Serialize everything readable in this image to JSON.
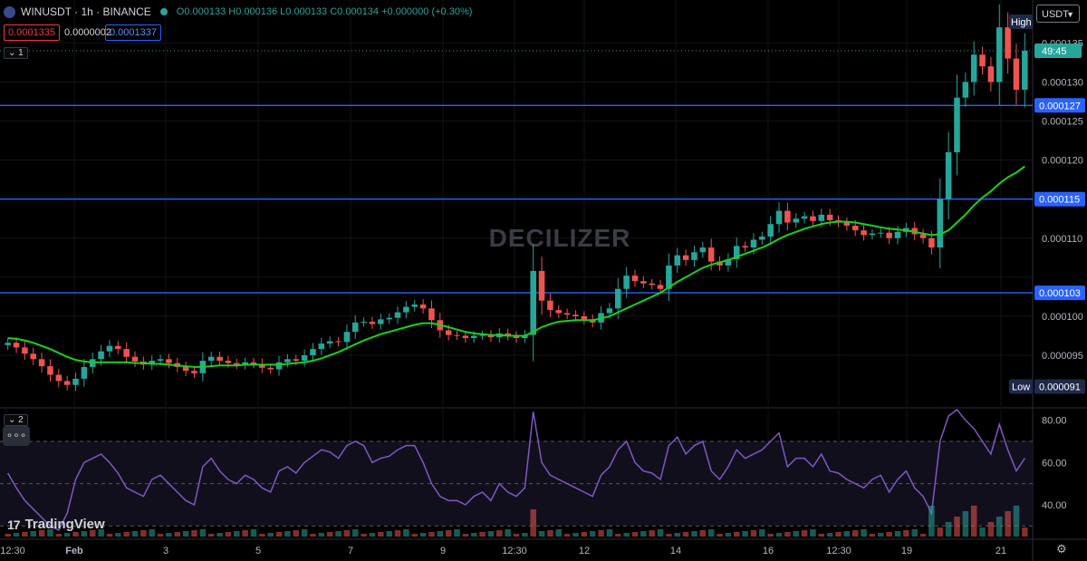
{
  "header": {
    "symbol": "WINUSDT · 1h · BINANCE",
    "ohlc": "O0.000133 H0.000136 L0.000133 C0.000134 +0.000000 (+0.30%)",
    "bid": "0.0001335",
    "spread": "0.0000002",
    "ask": "0.0001337",
    "main_pane": "1",
    "rsi_pane": "2"
  },
  "currency": "USDT",
  "watermark": "DECILIZER",
  "brand": "TradingView",
  "price_axis": {
    "ticks": [
      "0.000135",
      "0.000130",
      "0.000125",
      "0.000120",
      "0.000110",
      "0.000100",
      "0.000095"
    ],
    "high_tag": "High",
    "low_tag": "Low",
    "low_value": "0.000091",
    "countdown": "49:45"
  },
  "rsi_axis": {
    "ticks": [
      "80.00",
      "60.00",
      "40.00"
    ]
  },
  "time_axis": [
    "12:30",
    "Feb",
    "3",
    "5",
    "7",
    "9",
    "12:30",
    "12",
    "14",
    "16",
    "12:30",
    "19",
    "21"
  ],
  "colors": {
    "up": "#26a69a",
    "down": "#ef5350",
    "ma": "#19d11e",
    "level": "#2962ff",
    "rsi": "#7e57c2"
  },
  "chart_data": {
    "type": "candlestick",
    "title": "WINUSDT · 1h · BINANCE",
    "ylim": [
      8.85e-05,
      0.0001405
    ],
    "levels": [
      "0.000127",
      "0.000115",
      "0.000103"
    ],
    "close": [
      9.66e-05,
      9.6e-05,
      9.52e-05,
      9.45e-05,
      9.36e-05,
      9.25e-05,
      9.17e-05,
      9.12e-05,
      9.2e-05,
      9.35e-05,
      9.45e-05,
      9.55e-05,
      9.62e-05,
      9.58e-05,
      9.48e-05,
      9.42e-05,
      9.38e-05,
      9.43e-05,
      9.45e-05,
      9.4e-05,
      9.35e-05,
      9.3e-05,
      9.27e-05,
      9.43e-05,
      9.48e-05,
      9.43e-05,
      9.4e-05,
      9.38e-05,
      9.41e-05,
      9.39e-05,
      9.34e-05,
      9.32e-05,
      9.41e-05,
      9.45e-05,
      9.43e-05,
      9.5e-05,
      9.58e-05,
      9.65e-05,
      9.68e-05,
      9.67e-05,
      9.8e-05,
      9.92e-05,
      9.93e-05,
      9.9e-05,
      9.96e-05,
      9.98e-05,
      0.0001005,
      0.0001012,
      0.0001015,
      0.000101,
      9.95e-05,
      9.82e-05,
      9.76e-05,
      9.75e-05,
      9.72e-05,
      9.75e-05,
      9.76e-05,
      9.73e-05,
      9.78e-05,
      9.75e-05,
      9.72e-05,
      9.76e-05,
      0.0001058,
      0.000102,
      0.0001008,
      0.0001004,
      0.0001002,
      0.0001,
      9.96e-05,
      9.92e-05,
      0.0001004,
      0.000101,
      0.0001035,
      0.0001052,
      0.0001045,
      0.0001042,
      0.000104,
      0.0001035,
      0.0001065,
      0.0001078,
      0.0001072,
      0.0001082,
      0.0001088,
      0.000107,
      0.0001065,
      0.0001073,
      0.000109,
      0.0001088,
      0.0001098,
      0.0001102,
      0.0001118,
      0.0001135,
      0.000112,
      0.0001125,
      0.0001128,
      0.0001122,
      0.000113,
      0.0001123,
      0.000112,
      0.0001116,
      0.000111,
      0.0001104,
      0.0001106,
      0.0001107,
      0.00011,
      0.0001108,
      0.0001113,
      0.0001105,
      0.00011,
      0.0001088,
      0.000115,
      0.000121,
      0.000128,
      0.00013,
      0.0001335,
      0.000132,
      0.00013,
      0.000137,
      0.000133,
      0.000129,
      0.000134
    ],
    "ma": [
      9.72e-05,
      9.71e-05,
      9.69e-05,
      9.66e-05,
      9.62e-05,
      9.58e-05,
      9.53e-05,
      9.48e-05,
      9.44e-05,
      9.42e-05,
      9.41e-05,
      9.41e-05,
      9.41e-05,
      9.41e-05,
      9.41e-05,
      9.4e-05,
      9.4e-05,
      9.39e-05,
      9.39e-05,
      9.38e-05,
      9.37e-05,
      9.36e-05,
      9.35e-05,
      9.35e-05,
      9.36e-05,
      9.37e-05,
      9.37e-05,
      9.37e-05,
      9.38e-05,
      9.38e-05,
      9.38e-05,
      9.38e-05,
      9.38e-05,
      9.39e-05,
      9.4e-05,
      9.41e-05,
      9.43e-05,
      9.46e-05,
      9.5e-05,
      9.54e-05,
      9.59e-05,
      9.64e-05,
      9.69e-05,
      9.73e-05,
      9.77e-05,
      9.8e-05,
      9.83e-05,
      9.86e-05,
      9.89e-05,
      9.91e-05,
      9.91e-05,
      9.89e-05,
      9.86e-05,
      9.83e-05,
      9.8e-05,
      9.78e-05,
      9.77e-05,
      9.76e-05,
      9.76e-05,
      9.75e-05,
      9.75e-05,
      9.75e-05,
      9.8e-05,
      9.86e-05,
      9.9e-05,
      9.93e-05,
      9.94e-05,
      9.95e-05,
      9.95e-05,
      9.95e-05,
      9.97e-05,
      0.0001,
      0.0001005,
      0.000101,
      0.0001015,
      0.000102,
      0.0001025,
      0.000103,
      0.0001037,
      0.0001044,
      0.000105,
      0.0001056,
      0.0001062,
      0.0001066,
      0.0001069,
      0.0001072,
      0.0001076,
      0.000108,
      0.0001084,
      0.0001088,
      0.0001093,
      0.0001099,
      0.0001104,
      0.0001108,
      0.0001112,
      0.0001115,
      0.0001118,
      0.000112,
      0.0001121,
      0.0001121,
      0.000112,
      0.0001118,
      0.0001116,
      0.0001114,
      0.0001112,
      0.0001111,
      0.000111,
      0.0001108,
      0.0001106,
      0.0001104,
      0.0001105,
      0.000111,
      0.000112,
      0.000113,
      0.0001142,
      0.0001152,
      0.000116,
      0.000117,
      0.0001178,
      0.0001184,
      0.0001192
    ],
    "rsi": [
      55,
      48,
      42,
      38,
      34,
      30,
      28,
      36,
      52,
      60,
      62,
      64,
      60,
      55,
      48,
      46,
      44,
      52,
      54,
      50,
      46,
      42,
      40,
      58,
      62,
      56,
      52,
      50,
      54,
      52,
      48,
      46,
      56,
      58,
      55,
      60,
      63,
      66,
      65,
      62,
      68,
      70,
      68,
      60,
      62,
      63,
      66,
      68,
      68,
      60,
      50,
      44,
      42,
      42,
      40,
      44,
      46,
      42,
      50,
      46,
      44,
      48,
      84,
      60,
      54,
      52,
      50,
      48,
      46,
      44,
      54,
      58,
      66,
      70,
      60,
      56,
      55,
      52,
      68,
      72,
      64,
      68,
      70,
      56,
      52,
      58,
      66,
      62,
      64,
      66,
      70,
      74,
      58,
      62,
      62,
      58,
      64,
      56,
      55,
      52,
      50,
      48,
      52,
      54,
      46,
      52,
      56,
      48,
      44,
      36,
      70,
      82,
      85,
      80,
      76,
      70,
      64,
      78,
      66,
      56,
      62
    ]
  }
}
